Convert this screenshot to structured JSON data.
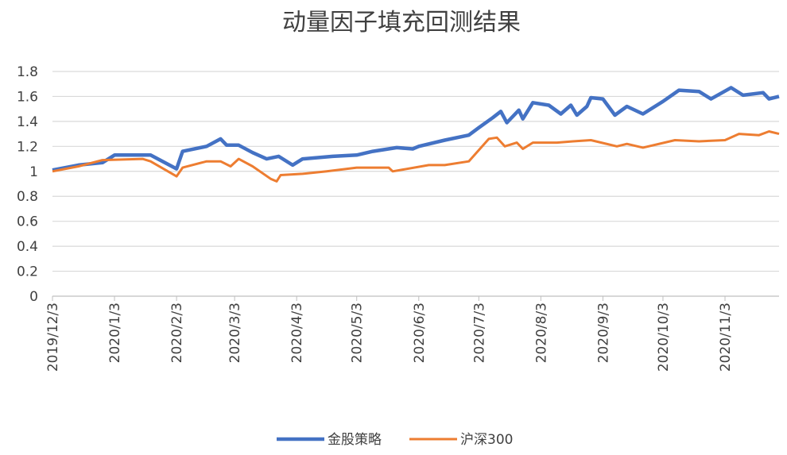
{
  "chart_data": {
    "type": "line",
    "title": "动量因子填充回测结果",
    "xlabel": "",
    "ylabel": "",
    "ylim": [
      0,
      1.8
    ],
    "yticks": [
      "0",
      "0.2",
      "0.4",
      "0.6",
      "0.8",
      "1",
      "1.2",
      "1.4",
      "1.6",
      "1.8"
    ],
    "x_unit": "days since 2019/12/3",
    "xlim": [
      0,
      363
    ],
    "xticks": [
      {
        "day": 0,
        "label": "2019/12/3"
      },
      {
        "day": 31,
        "label": "2020/1/3"
      },
      {
        "day": 62,
        "label": "2020/2/3"
      },
      {
        "day": 91,
        "label": "2020/3/3"
      },
      {
        "day": 122,
        "label": "2020/4/3"
      },
      {
        "day": 152,
        "label": "2020/5/3"
      },
      {
        "day": 183,
        "label": "2020/6/3"
      },
      {
        "day": 213,
        "label": "2020/7/3"
      },
      {
        "day": 244,
        "label": "2020/8/3"
      },
      {
        "day": 275,
        "label": "2020/9/3"
      },
      {
        "day": 305,
        "label": "2020/10/3"
      },
      {
        "day": 336,
        "label": "2020/11/3"
      }
    ],
    "grid": true,
    "legend_position": "bottom",
    "series": [
      {
        "name": "金股策略",
        "color": "#4472C4",
        "x": [
          0,
          13,
          25,
          31,
          49,
          62,
          65,
          77,
          84,
          87,
          93,
          100,
          107,
          113,
          120,
          125,
          140,
          152,
          160,
          172,
          180,
          183,
          196,
          208,
          213,
          220,
          224,
          227,
          233,
          235,
          240,
          248,
          254,
          259,
          262,
          267,
          269,
          275,
          281,
          287,
          295,
          305,
          313,
          323,
          329,
          339,
          345,
          355,
          358,
          363
        ],
        "y": [
          1.01,
          1.05,
          1.07,
          1.13,
          1.13,
          1.02,
          1.16,
          1.2,
          1.26,
          1.21,
          1.21,
          1.15,
          1.1,
          1.12,
          1.05,
          1.1,
          1.12,
          1.13,
          1.16,
          1.19,
          1.18,
          1.2,
          1.25,
          1.29,
          1.35,
          1.43,
          1.48,
          1.39,
          1.49,
          1.42,
          1.55,
          1.53,
          1.46,
          1.53,
          1.45,
          1.52,
          1.59,
          1.58,
          1.45,
          1.52,
          1.46,
          1.56,
          1.65,
          1.64,
          1.58,
          1.67,
          1.61,
          1.63,
          1.58,
          1.6
        ]
      },
      {
        "name": "沪深300",
        "color": "#ED7D31",
        "x": [
          0,
          13,
          25,
          45,
          49,
          62,
          65,
          77,
          84,
          89,
          93,
          100,
          109,
          112,
          114,
          125,
          137,
          152,
          168,
          170,
          188,
          196,
          208,
          218,
          222,
          226,
          232,
          235,
          240,
          252,
          260,
          269,
          282,
          287,
          295,
          311,
          323,
          336,
          343,
          353,
          358,
          363
        ],
        "y": [
          1.0,
          1.04,
          1.09,
          1.1,
          1.08,
          0.96,
          1.03,
          1.08,
          1.08,
          1.04,
          1.1,
          1.04,
          0.94,
          0.92,
          0.97,
          0.98,
          1.0,
          1.03,
          1.03,
          1.0,
          1.05,
          1.05,
          1.08,
          1.26,
          1.27,
          1.2,
          1.23,
          1.18,
          1.23,
          1.23,
          1.24,
          1.25,
          1.2,
          1.22,
          1.19,
          1.25,
          1.24,
          1.25,
          1.3,
          1.29,
          1.32,
          1.3
        ]
      }
    ]
  }
}
